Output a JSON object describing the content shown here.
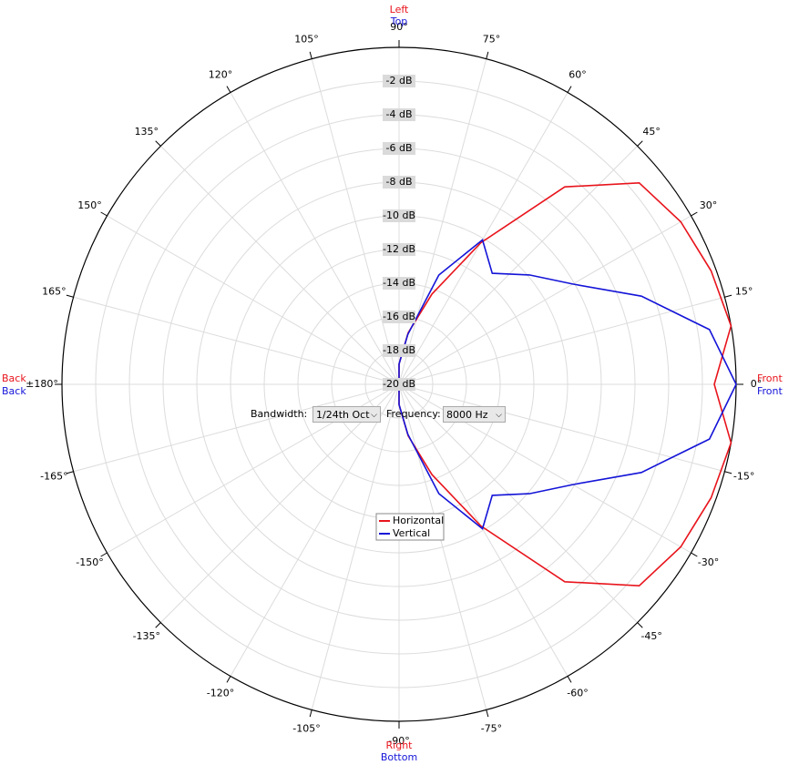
{
  "chart_data": {
    "type": "polar",
    "theta": [
      -180,
      -170,
      -160,
      -150,
      -140,
      -130,
      -120,
      -110,
      -100,
      -90,
      -80,
      -70,
      -60,
      -50,
      -40,
      -30,
      -20,
      -10,
      0,
      10,
      20,
      30,
      40,
      50,
      60,
      70,
      80,
      90,
      100,
      110,
      120,
      130,
      140,
      150,
      160,
      170,
      180
    ],
    "series": [
      {
        "name": "Horizontal",
        "color": "#e8141c",
        "values": [
          -20,
          -20,
          -20,
          -20,
          -20,
          -20,
          -20,
          -20,
          -20,
          -18.8,
          -16.9,
          -14.3,
          -10.3,
          -4.7,
          -1.4,
          -0.7,
          -0.3,
          0,
          -1.3,
          0,
          -0.3,
          -0.7,
          -1.4,
          -4.7,
          -10.3,
          -14.3,
          -16.9,
          -18.8,
          -20,
          -20,
          -20,
          -20,
          -20,
          -20,
          -20,
          -20,
          -20
        ]
      },
      {
        "name": "Vertical",
        "color": "#1414d8",
        "values": [
          -20,
          -20,
          -20,
          -20,
          -20,
          -20,
          -20,
          -20,
          -20,
          -18.8,
          -17,
          -13.1,
          -10.1,
          -11.4,
          -9.9,
          -8.1,
          -4.7,
          -1.3,
          0,
          -1.3,
          -4.7,
          -8.1,
          -9.9,
          -11.4,
          -10.1,
          -13.1,
          -17,
          -18.8,
          -20,
          -20,
          -20,
          -20,
          -20,
          -20,
          -20,
          -20,
          -20
        ]
      }
    ],
    "rlim": [
      -20,
      0
    ],
    "rticks": [
      {
        "value": -20,
        "label": "-20 dB"
      },
      {
        "value": -18,
        "label": "-18 dB"
      },
      {
        "value": -16,
        "label": "-16 dB"
      },
      {
        "value": -14,
        "label": "-14 dB"
      },
      {
        "value": -12,
        "label": "-12 dB"
      },
      {
        "value": -10,
        "label": "-10 dB"
      },
      {
        "value": -8,
        "label": "-8 dB"
      },
      {
        "value": -6,
        "label": "-6 dB"
      },
      {
        "value": -4,
        "label": "-4 dB"
      },
      {
        "value": -2,
        "label": "-2 dB"
      }
    ],
    "thetaticks": [
      {
        "value": -165,
        "label": "-165°"
      },
      {
        "value": -150,
        "label": "-150°"
      },
      {
        "value": -135,
        "label": "-135°"
      },
      {
        "value": -120,
        "label": "-120°"
      },
      {
        "value": -105,
        "label": "-105°"
      },
      {
        "value": -90,
        "label": "-90°"
      },
      {
        "value": -75,
        "label": "-75°"
      },
      {
        "value": -60,
        "label": "-60°"
      },
      {
        "value": -45,
        "label": "-45°"
      },
      {
        "value": -30,
        "label": "-30°"
      },
      {
        "value": -15,
        "label": "-15°"
      },
      {
        "value": 0,
        "label": "0°"
      },
      {
        "value": 15,
        "label": "15°"
      },
      {
        "value": 30,
        "label": "30°"
      },
      {
        "value": 45,
        "label": "45°"
      },
      {
        "value": 60,
        "label": "60°"
      },
      {
        "value": 75,
        "label": "75°"
      },
      {
        "value": 90,
        "label": "90°"
      },
      {
        "value": 105,
        "label": "105°"
      },
      {
        "value": 120,
        "label": "120°"
      },
      {
        "value": 135,
        "label": "135°"
      },
      {
        "value": 150,
        "label": "150°"
      },
      {
        "value": 165,
        "label": "165°"
      },
      {
        "value": 180,
        "label": "±180°"
      }
    ],
    "grid": true,
    "direction_labels": {
      "top": [
        "Left",
        "Top"
      ],
      "bottom": [
        "Right",
        "Bottom"
      ],
      "left": [
        "Back",
        "Back"
      ],
      "right": [
        "Front",
        "Front"
      ]
    }
  },
  "controls": [
    {
      "label": "Bandwidth:",
      "value": "1/24th Oct"
    },
    {
      "label": "Frequency:",
      "value": "8000 Hz"
    }
  ]
}
